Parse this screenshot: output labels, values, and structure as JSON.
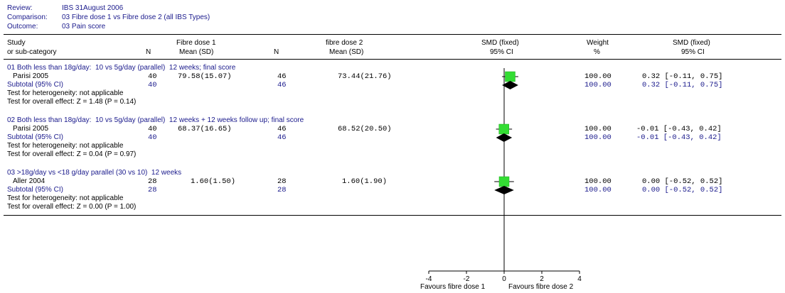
{
  "meta": {
    "review_label": "Review:",
    "review_value": "IBS 31August 2006",
    "comparison_label": "Comparison:",
    "comparison_value": "03 Fibre dose 1 vs Fibre dose 2 (all IBS Types)",
    "outcome_label": "Outcome:",
    "outcome_value": "03 Pain score"
  },
  "header": {
    "study": "Study",
    "subcategory": "or sub-category",
    "group1": "Fibre dose 1",
    "n": "N",
    "mean_sd": "Mean (SD)",
    "group2": "fibre dose 2",
    "smd": "SMD (fixed)",
    "ci": "95% CI",
    "weight": "Weight",
    "pct": "%"
  },
  "groups": [
    {
      "title": "01 Both less than 18g/day:  10 vs 5g/day (parallel)  12 weeks; final score",
      "study": "Parisi 2005",
      "n1": "40",
      "mean1": "79.58(15.07)",
      "n2": "46",
      "mean2": "73.44(21.76)",
      "weight": "100.00",
      "smd_ci": "0.32 [-0.11, 0.75]",
      "subtotal_label": "Subtotal (95% CI)",
      "sub_n1": "40",
      "sub_n2": "46",
      "sub_weight": "100.00",
      "sub_smd_ci": "0.32 [-0.11, 0.75]",
      "heterogeneity": "Test for heterogeneity: not applicable",
      "overall": "Test for overall effect: Z = 1.48 (P = 0.14)"
    },
    {
      "title": "02 Both less than 18g/day:  10 vs 5g/day (parallel)  12 weeks + 12 weeks follow up; final score",
      "study": "Parisi 2005",
      "n1": "40",
      "mean1": "68.37(16.65)",
      "n2": "46",
      "mean2": "68.52(20.50)",
      "weight": "100.00",
      "smd_ci": "-0.01 [-0.43, 0.42]",
      "subtotal_label": "Subtotal (95% CI)",
      "sub_n1": "40",
      "sub_n2": "46",
      "sub_weight": "100.00",
      "sub_smd_ci": "-0.01 [-0.43, 0.42]",
      "heterogeneity": "Test for heterogeneity: not applicable",
      "overall": "Test for overall effect: Z = 0.04 (P = 0.97)"
    },
    {
      "title": "03 >18g/day vs <18 g/day parallel (30 vs 10)  12 weeks",
      "study": "Aller 2004",
      "n1": "28",
      "mean1": "1.60(1.50)",
      "n2": "28",
      "mean2": "1.60(1.90)",
      "weight": "100.00",
      "smd_ci": "0.00 [-0.52, 0.52]",
      "subtotal_label": "Subtotal (95% CI)",
      "sub_n1": "28",
      "sub_n2": "28",
      "sub_weight": "100.00",
      "sub_smd_ci": "0.00 [-0.52, 0.52]",
      "heterogeneity": "Test for heterogeneity: not applicable",
      "overall": "Test for overall effect: Z = 0.00 (P = 1.00)"
    }
  ],
  "axis": {
    "ticks": [
      -4,
      -2,
      0,
      2,
      4
    ],
    "favours_left": "Favours fibre dose 1",
    "favours_right": "Favours fibre dose 2"
  },
  "colors": {
    "study_marker": "#33dd33",
    "diamond": "#000000",
    "blue_text": "#1a1a8c"
  },
  "chart_data": {
    "type": "forest",
    "xlim": [
      -4,
      4
    ],
    "null_line": 0,
    "studies": [
      {
        "name": "Parisi 2005",
        "smd": 0.32,
        "ci": [
          -0.11,
          0.75
        ],
        "weight": 100.0
      },
      {
        "name": "Parisi 2005",
        "smd": -0.01,
        "ci": [
          -0.43,
          0.42
        ],
        "weight": 100.0
      },
      {
        "name": "Aller 2004",
        "smd": 0.0,
        "ci": [
          -0.52,
          0.52
        ],
        "weight": 100.0
      }
    ],
    "subtotals": [
      {
        "smd": 0.32,
        "ci": [
          -0.11,
          0.75
        ]
      },
      {
        "smd": -0.01,
        "ci": [
          -0.43,
          0.42
        ]
      },
      {
        "smd": 0.0,
        "ci": [
          -0.52,
          0.52
        ]
      }
    ]
  }
}
